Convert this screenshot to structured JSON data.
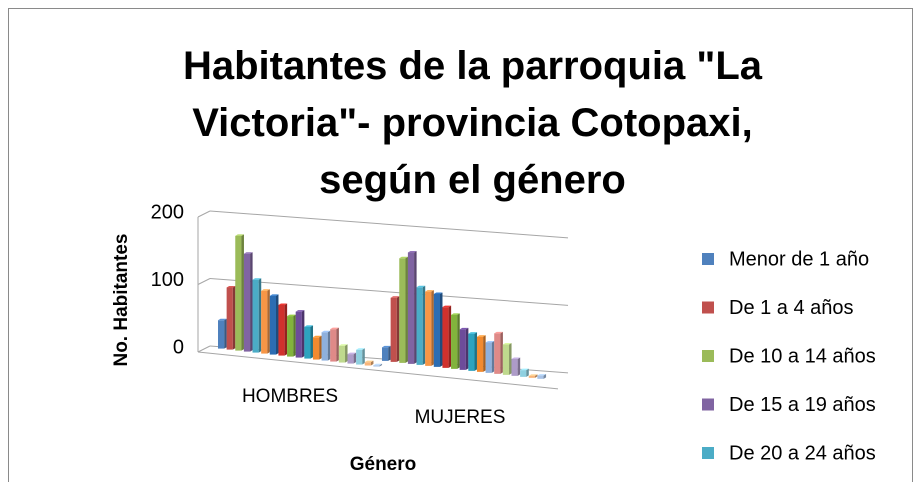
{
  "chart_data": {
    "type": "bar3d",
    "title": "Habitantes de la parroquia \"La Victoria\"- provincia Cotopaxi, según el género",
    "x_label": "Género",
    "y_label": "No. Habitantes",
    "categories": [
      "HOMBRES",
      "MUJERES"
    ],
    "ylim": [
      0,
      200
    ],
    "yticks": [
      0,
      100,
      200
    ],
    "grid": true,
    "legend": "right",
    "series": [
      {
        "name": "Menor de 1 año",
        "color": "#4f81bd",
        "values": [
          42,
          20
        ]
      },
      {
        "name": "De 1 a 4 años",
        "color": "#c0504d",
        "values": [
          92,
          95
        ]
      },
      {
        "name": "De 10 a 14 años",
        "color": "#9bbb59",
        "values": [
          170,
          155
        ]
      },
      {
        "name": "De 15 a 19 años",
        "color": "#8064a2",
        "values": [
          145,
          165
        ]
      },
      {
        "name": "De 20 a 24 años",
        "color": "#4bacc6",
        "values": [
          108,
          115
        ]
      },
      {
        "name": null,
        "color": "#f79646",
        "values": [
          93,
          110
        ]
      },
      {
        "name": null,
        "color": "#2c6db3",
        "values": [
          87,
          108
        ]
      },
      {
        "name": null,
        "color": "#d0312d",
        "values": [
          75,
          90
        ]
      },
      {
        "name": null,
        "color": "#82b33c",
        "values": [
          60,
          80
        ]
      },
      {
        "name": null,
        "color": "#6d4c9a",
        "values": [
          68,
          60
        ]
      },
      {
        "name": null,
        "color": "#2ea3bf",
        "values": [
          47,
          55
        ]
      },
      {
        "name": null,
        "color": "#f28a2f",
        "values": [
          33,
          52
        ]
      },
      {
        "name": null,
        "color": "#8eb0dd",
        "values": [
          42,
          45
        ]
      },
      {
        "name": null,
        "color": "#df8a88",
        "values": [
          48,
          60
        ]
      },
      {
        "name": null,
        "color": "#bfd98e",
        "values": [
          25,
          45
        ]
      },
      {
        "name": null,
        "color": "#ad9bc8",
        "values": [
          14,
          25
        ]
      },
      {
        "name": null,
        "color": "#8fd0e0",
        "values": [
          22,
          10
        ]
      },
      {
        "name": null,
        "color": "#f9b57a",
        "values": [
          5,
          3
        ]
      },
      {
        "name": null,
        "color": "#a9c3e6",
        "values": [
          2,
          5
        ]
      }
    ]
  }
}
